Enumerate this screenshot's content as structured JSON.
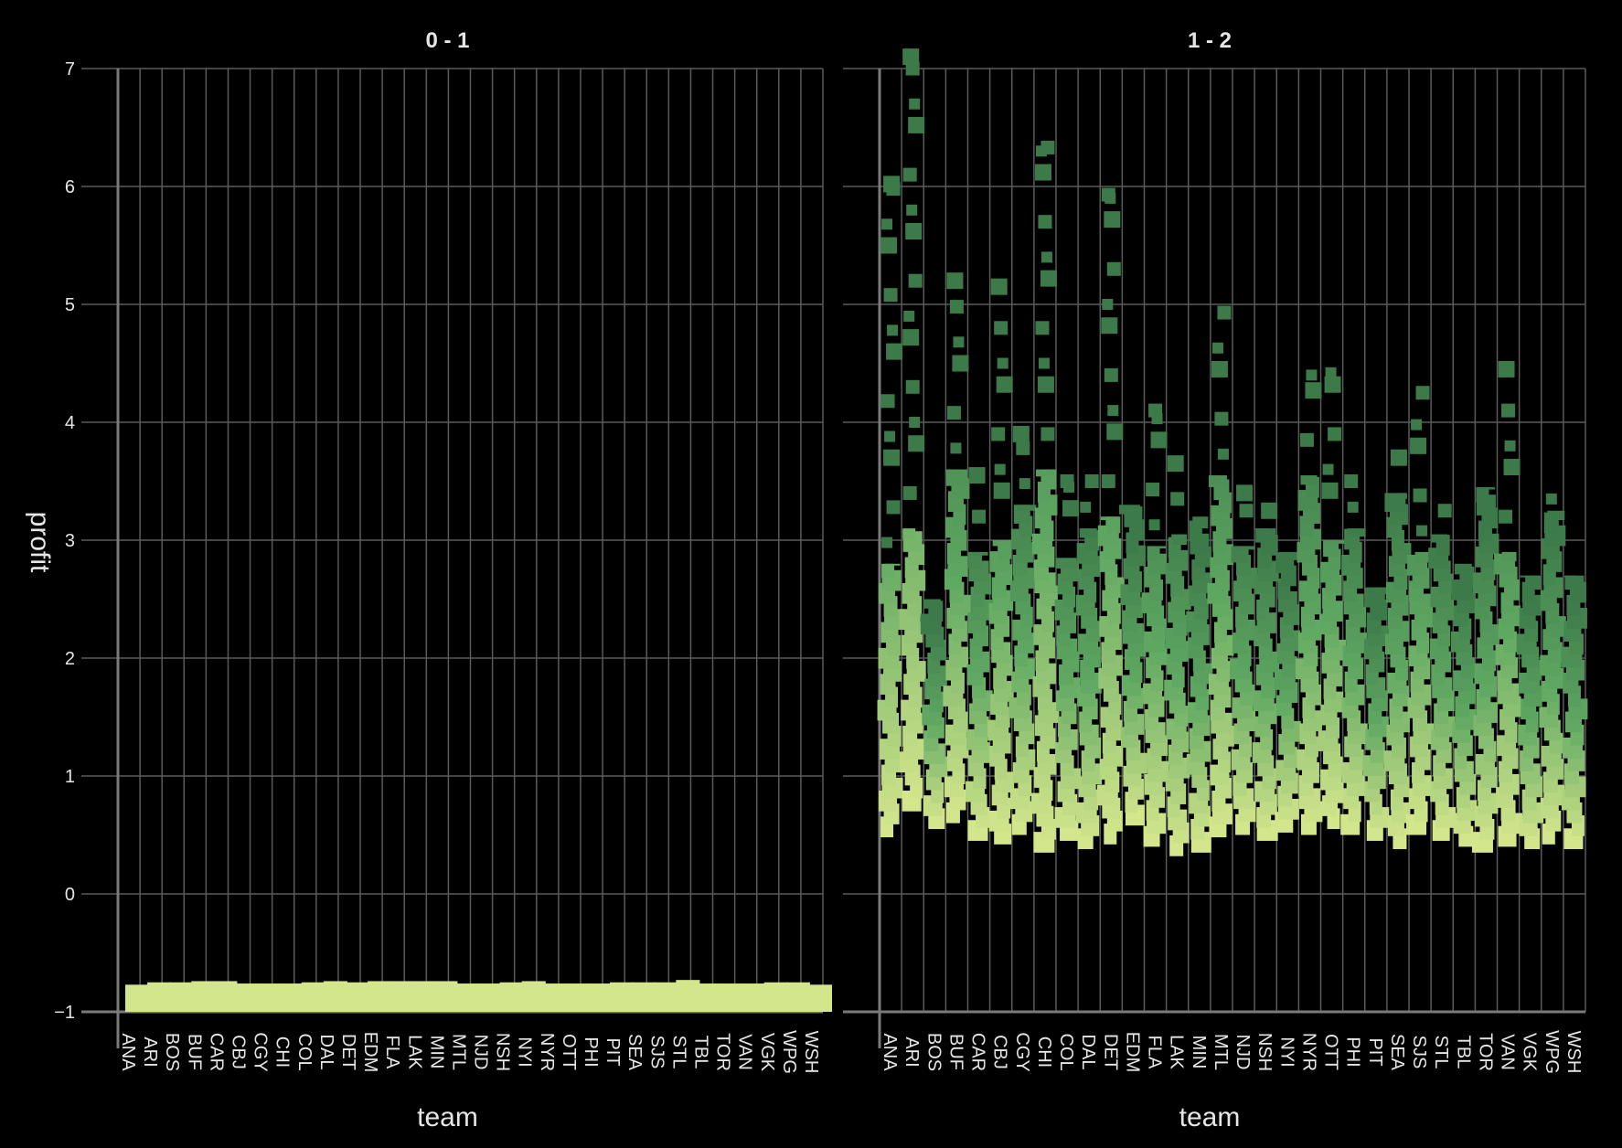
{
  "chart_data": {
    "type": "bar",
    "xlabel": "team",
    "ylabel": "profit",
    "ylim": [
      -1,
      7
    ],
    "yticks": [
      -1,
      0,
      1,
      2,
      3,
      4,
      5,
      6,
      7
    ],
    "ytick_labels": [
      "−1",
      "0",
      "1",
      "2",
      "3",
      "4",
      "5",
      "6",
      "7"
    ],
    "grid": true,
    "legend": "none",
    "categories": [
      "ANA",
      "ARI",
      "BOS",
      "BUF",
      "CAR",
      "CBJ",
      "CGY",
      "CHI",
      "COL",
      "DAL",
      "DET",
      "EDM",
      "FLA",
      "LAK",
      "MIN",
      "MTL",
      "NJD",
      "NSH",
      "NYI",
      "NYR",
      "OTT",
      "PHI",
      "PIT",
      "SEA",
      "SJS",
      "STL",
      "TBL",
      "TOR",
      "VAN",
      "VGK",
      "WPG",
      "WSH"
    ],
    "colors": {
      "low": "#d4e68c",
      "mid": "#5fa862",
      "high": "#3d7a4a",
      "grid": "#5a5a5a",
      "background": "#000000"
    },
    "facets": [
      {
        "title": "0 - 1",
        "values": [
          -0.77,
          -0.75,
          -0.75,
          -0.74,
          -0.74,
          -0.76,
          -0.76,
          -0.76,
          -0.75,
          -0.74,
          -0.75,
          -0.74,
          -0.74,
          -0.74,
          -0.74,
          -0.76,
          -0.76,
          -0.75,
          -0.74,
          -0.76,
          -0.76,
          -0.76,
          -0.75,
          -0.75,
          -0.75,
          -0.73,
          -0.76,
          -0.76,
          -0.76,
          -0.75,
          -0.75,
          -0.77
        ]
      },
      {
        "title": "1 - 2",
        "min": [
          0.48,
          0.7,
          0.55,
          0.6,
          0.45,
          0.42,
          0.5,
          0.35,
          0.45,
          0.38,
          0.42,
          0.58,
          0.4,
          0.32,
          0.35,
          0.48,
          0.5,
          0.45,
          0.52,
          0.5,
          0.55,
          0.5,
          0.45,
          0.38,
          0.5,
          0.45,
          0.4,
          0.35,
          0.4,
          0.38,
          0.42,
          0.38
        ],
        "median": [
          1.2,
          1.3,
          1.25,
          1.4,
          1.3,
          1.2,
          1.3,
          1.4,
          1.25,
          1.3,
          1.2,
          1.3,
          1.35,
          1.25,
          1.3,
          1.35,
          1.35,
          1.3,
          1.3,
          1.35,
          1.4,
          1.3,
          1.25,
          1.2,
          1.3,
          1.25,
          1.2,
          1.25,
          1.3,
          1.3,
          1.25,
          1.2
        ],
        "max": [
          6.02,
          7.1,
          2.5,
          5.2,
          3.55,
          5.15,
          3.9,
          6.33,
          3.5,
          3.5,
          5.93,
          3.3,
          4.1,
          3.65,
          3.2,
          4.93,
          3.4,
          3.25,
          2.9,
          4.4,
          4.42,
          3.5,
          2.6,
          3.7,
          4.25,
          3.25,
          2.8,
          3.45,
          4.45,
          2.7,
          3.35,
          2.7
        ]
      }
    ]
  }
}
